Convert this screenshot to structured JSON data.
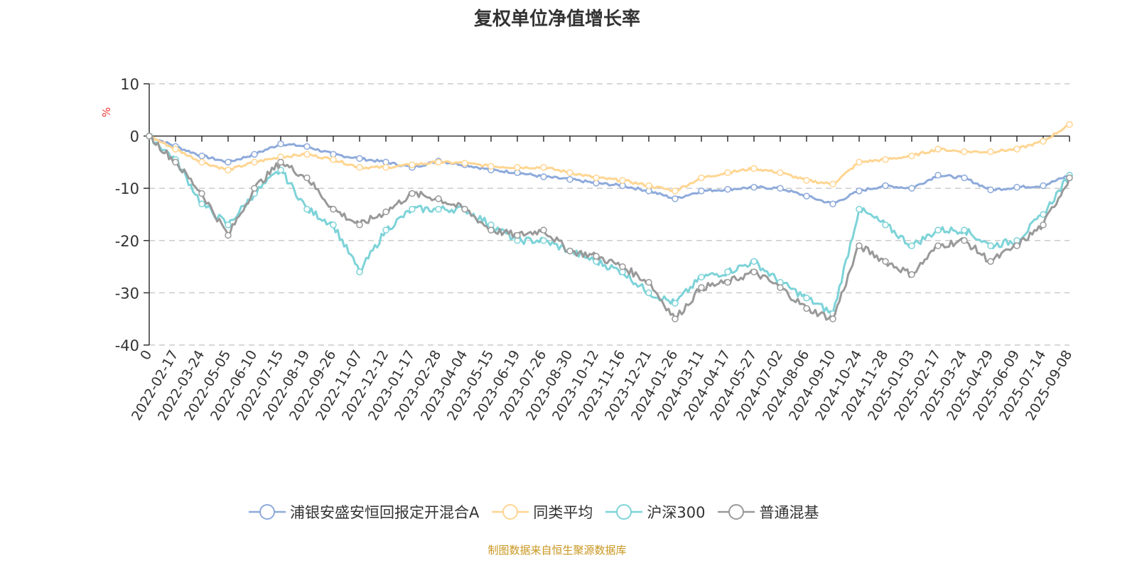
{
  "chart_data": {
    "type": "line",
    "title": "复权单位净值增长率",
    "ylabel": "%",
    "xlabel": "",
    "ylim": [
      -40,
      10
    ],
    "yticks": [
      10,
      0,
      -10,
      -20,
      -30,
      -40
    ],
    "grid": true,
    "legend_position": "bottom",
    "categories": [
      "0",
      "2022-02-17",
      "2022-03-24",
      "2022-05-05",
      "2022-06-10",
      "2022-07-15",
      "2022-08-19",
      "2022-09-26",
      "2022-11-07",
      "2022-12-12",
      "2023-01-17",
      "2023-02-28",
      "2023-04-04",
      "2023-05-15",
      "2023-06-19",
      "2023-07-26",
      "2023-08-30",
      "2023-10-12",
      "2023-11-16",
      "2023-12-21",
      "2024-01-26",
      "2024-03-11",
      "2024-04-17",
      "2024-05-27",
      "2024-07-02",
      "2024-08-06",
      "2024-09-10",
      "2024-10-24",
      "2024-11-28",
      "2025-01-03",
      "2025-02-17",
      "2025-03-24",
      "2025-04-29",
      "2025-06-09",
      "2025-07-14",
      "2025-09-08"
    ],
    "series": [
      {
        "name": "浦银安盛安恒回报定开混合A",
        "color": "#8eaadb",
        "values": [
          0,
          -2,
          -3.8,
          -5,
          -3.5,
          -1.5,
          -2,
          -3.5,
          -4.3,
          -5,
          -6,
          -4.8,
          -5.5,
          -6.5,
          -7,
          -7.8,
          -8.3,
          -9,
          -9.5,
          -10.5,
          -12,
          -10.5,
          -10.2,
          -9.8,
          -10,
          -11.5,
          -13,
          -10.5,
          -9.5,
          -10,
          -7.5,
          -8,
          -10.3,
          -9.8,
          -9.5,
          -7.5
        ]
      },
      {
        "name": "同类平均",
        "color": "#ffd591",
        "values": [
          0,
          -2.5,
          -5,
          -6.5,
          -5,
          -4,
          -3.5,
          -4.5,
          -6,
          -6,
          -5.5,
          -5,
          -5.2,
          -5.8,
          -6,
          -6,
          -7,
          -8,
          -8.5,
          -9.5,
          -10.5,
          -8,
          -7,
          -6.2,
          -7,
          -8.5,
          -9.2,
          -5,
          -4.5,
          -3.8,
          -2.5,
          -3,
          -3,
          -2.5,
          -1,
          2.2
        ]
      },
      {
        "name": "沪深300",
        "color": "#7dd3d8",
        "values": [
          0,
          -4.5,
          -13,
          -17,
          -11,
          -6.5,
          -14,
          -17,
          -26,
          -18,
          -14,
          -14,
          -14,
          -17,
          -20,
          -20,
          -22,
          -24,
          -26,
          -30,
          -32,
          -27,
          -26,
          -24,
          -28,
          -31,
          -34,
          -14,
          -17,
          -21,
          -18,
          -18,
          -21,
          -20,
          -15,
          -7.5
        ]
      },
      {
        "name": "普通混基",
        "color": "#999999",
        "values": [
          0,
          -5,
          -11,
          -19,
          -10,
          -5,
          -8,
          -14,
          -17,
          -14.5,
          -11,
          -12,
          -14,
          -18,
          -19,
          -18,
          -22,
          -23,
          -25,
          -28,
          -35,
          -29,
          -28,
          -26,
          -29,
          -33,
          -35,
          -21,
          -24,
          -26.5,
          -21,
          -20,
          -24,
          -21,
          -17,
          -8
        ]
      }
    ]
  },
  "source": "制图数据来自恒生聚源数据库"
}
